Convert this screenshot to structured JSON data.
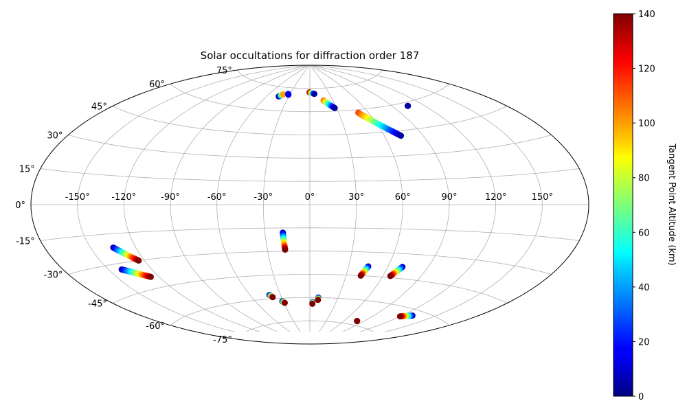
{
  "chart_data": {
    "type": "scatter",
    "projection": "aitoff",
    "title": "Solar occultations for diffraction order 187",
    "lon_ticks": [
      -150,
      -120,
      -90,
      -60,
      -30,
      0,
      30,
      60,
      90,
      120,
      150
    ],
    "lat_ticks": [
      -75,
      -60,
      -45,
      -30,
      -15,
      0,
      15,
      30,
      45,
      60,
      75
    ],
    "lon_tick_labels": [
      "-150°",
      "-120°",
      "-90°",
      "-60°",
      "-30°",
      "0°",
      "30°",
      "60°",
      "90°",
      "120°",
      "150°"
    ],
    "lat_tick_labels": [
      "-75°",
      "-60°",
      "-45°",
      "-30°",
      "-15°",
      "0°",
      "15°",
      "30°",
      "45°",
      "60°",
      "75°"
    ],
    "grid": true,
    "colorbar": {
      "label": "Tangent Point Altitude (km)",
      "min": 0,
      "max": 140,
      "ticks": [
        0,
        20,
        40,
        60,
        80,
        100,
        120,
        140
      ],
      "tick_labels": [
        "0",
        "20",
        "40",
        "60",
        "80",
        "100",
        "120",
        "140"
      ],
      "colormap": "jet"
    },
    "tracks": [
      {
        "start": [
          -44,
          69
        ],
        "end": [
          -40,
          70.5
        ],
        "alt_start": 0,
        "alt_end": 100
      },
      {
        "start": [
          -32,
          70.5
        ],
        "end": [
          -33,
          71
        ],
        "alt_start": 5,
        "alt_end": 15
      },
      {
        "start": [
          -0.5,
          72.5
        ],
        "end": [
          7,
          71.5
        ],
        "alt_start": 140,
        "alt_end": 5
      },
      {
        "start": [
          18,
          67
        ],
        "end": [
          28,
          62
        ],
        "alt_start": 110,
        "alt_end": 5
      },
      {
        "start": [
          50,
          58
        ],
        "end": [
          73,
          42
        ],
        "alt_start": 115,
        "alt_end": 5
      },
      {
        "start": [
          105,
          58
        ],
        "end": [
          105,
          58
        ],
        "alt_start": 5,
        "alt_end": 5
      },
      {
        "start": [
          -141,
          -33
        ],
        "end": [
          -126,
          -39
        ],
        "alt_start": 5,
        "alt_end": 140
      },
      {
        "start": [
          -135,
          -22
        ],
        "end": [
          -124,
          -30
        ],
        "alt_start": 5,
        "alt_end": 140
      },
      {
        "start": [
          -18,
          -18
        ],
        "end": [
          -17.5,
          -29
        ],
        "alt_start": 5,
        "alt_end": 140
      },
      {
        "start": [
          45,
          -39
        ],
        "end": [
          42,
          -45
        ],
        "alt_start": 5,
        "alt_end": 140
      },
      {
        "start": [
          71,
          -38
        ],
        "end": [
          66,
          -44
        ],
        "alt_start": 5,
        "alt_end": 140
      },
      {
        "start": [
          -41,
          -57.5
        ],
        "end": [
          -39,
          -59
        ],
        "alt_start": 5,
        "alt_end": 140
      },
      {
        "start": [
          -31,
          -62
        ],
        "end": [
          -29,
          -63
        ],
        "alt_start": 5,
        "alt_end": 140
      },
      {
        "start": [
          3,
          -63
        ],
        "end": [
          3,
          -64
        ],
        "alt_start": 10,
        "alt_end": 140
      },
      {
        "start": [
          9,
          -60
        ],
        "end": [
          9,
          -61.5
        ],
        "alt_start": 5,
        "alt_end": 140
      },
      {
        "start": [
          80,
          -72.5
        ],
        "end": [
          80,
          -72.5
        ],
        "alt_start": 140,
        "alt_end": 140
      },
      {
        "start": [
          130,
          -63
        ],
        "end": [
          120,
          -65
        ],
        "alt_start": 5,
        "alt_end": 140
      }
    ]
  }
}
